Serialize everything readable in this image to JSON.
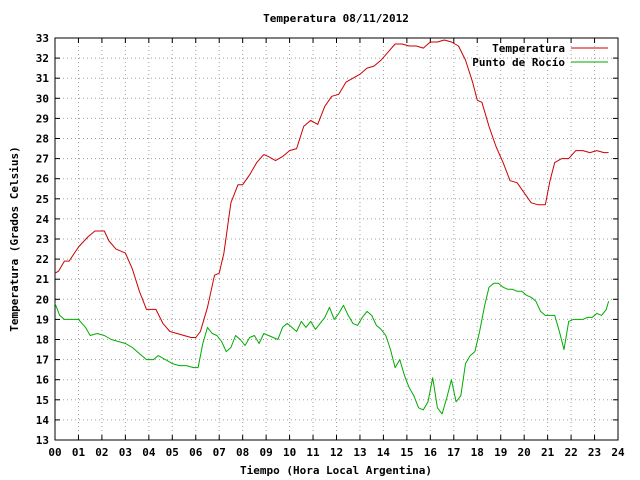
{
  "chart_data": {
    "type": "line",
    "title": "Temperatura 08/11/2012",
    "xlabel": "Tiempo (Hora Local Argentina)",
    "ylabel": "Temperatura (Grados Celsius)",
    "xlim": [
      0,
      24
    ],
    "ylim": [
      13,
      33
    ],
    "x_ticks": [
      "00",
      "01",
      "02",
      "03",
      "04",
      "05",
      "06",
      "07",
      "08",
      "09",
      "10",
      "11",
      "12",
      "13",
      "14",
      "15",
      "16",
      "17",
      "18",
      "19",
      "20",
      "21",
      "22",
      "23",
      "24"
    ],
    "y_ticks": [
      13,
      14,
      15,
      16,
      17,
      18,
      19,
      20,
      21,
      22,
      23,
      24,
      25,
      26,
      27,
      28,
      29,
      30,
      31,
      32,
      33
    ],
    "grid": true,
    "legend_position": "top-right",
    "series": [
      {
        "name": "Temperatura",
        "color": "#cc0000",
        "x": [
          0,
          0.15,
          0.4,
          0.6,
          1.0,
          1.4,
          1.7,
          2.1,
          2.3,
          2.6,
          3.0,
          3.3,
          3.6,
          3.9,
          4.3,
          4.6,
          4.9,
          5.2,
          5.5,
          5.8,
          6.0,
          6.2,
          6.5,
          6.8,
          7.0,
          7.2,
          7.5,
          7.8,
          8.0,
          8.3,
          8.6,
          8.9,
          9.1,
          9.4,
          9.7,
          10.0,
          10.3,
          10.6,
          10.9,
          11.2,
          11.5,
          11.8,
          12.1,
          12.4,
          12.7,
          13.0,
          13.3,
          13.6,
          13.9,
          14.2,
          14.5,
          14.8,
          15.1,
          15.4,
          15.7,
          16.0,
          16.3,
          16.6,
          16.9,
          17.2,
          17.5,
          17.8,
          18.0,
          18.2,
          18.5,
          18.8,
          19.1,
          19.4,
          19.7,
          20.0,
          20.3,
          20.6,
          20.9,
          21.1,
          21.3,
          21.6,
          21.9,
          22.2,
          22.5,
          22.8,
          23.1,
          23.4,
          23.6
        ],
        "y": [
          21.3,
          21.4,
          21.9,
          21.9,
          22.6,
          23.1,
          23.4,
          23.4,
          22.9,
          22.5,
          22.3,
          21.5,
          20.4,
          19.5,
          19.5,
          18.8,
          18.4,
          18.3,
          18.2,
          18.1,
          18.1,
          18.4,
          19.6,
          21.2,
          21.3,
          22.3,
          24.8,
          25.7,
          25.7,
          26.2,
          26.8,
          27.2,
          27.1,
          26.9,
          27.1,
          27.4,
          27.5,
          28.6,
          28.9,
          28.7,
          29.6,
          30.1,
          30.2,
          30.8,
          31.0,
          31.2,
          31.5,
          31.6,
          31.9,
          32.3,
          32.7,
          32.7,
          32.6,
          32.6,
          32.5,
          32.8,
          32.8,
          32.9,
          32.8,
          32.6,
          31.9,
          30.8,
          29.9,
          29.8,
          28.6,
          27.6,
          26.8,
          25.9,
          25.8,
          25.3,
          24.8,
          24.7,
          24.7,
          25.9,
          26.8,
          27.0,
          27.0,
          27.4,
          27.4,
          27.3,
          27.4,
          27.3,
          27.3
        ]
      },
      {
        "name": "Punto de Rocío",
        "color": "#00aa00",
        "x": [
          0,
          0.2,
          0.4,
          0.6,
          1.0,
          1.3,
          1.5,
          1.8,
          2.1,
          2.4,
          2.7,
          3.0,
          3.3,
          3.6,
          3.9,
          4.2,
          4.4,
          4.7,
          5.0,
          5.3,
          5.6,
          5.9,
          6.1,
          6.3,
          6.5,
          6.7,
          6.9,
          7.1,
          7.3,
          7.5,
          7.7,
          7.9,
          8.1,
          8.3,
          8.5,
          8.7,
          8.9,
          9.1,
          9.3,
          9.5,
          9.7,
          9.9,
          10.1,
          10.3,
          10.5,
          10.7,
          10.9,
          11.1,
          11.3,
          11.5,
          11.7,
          11.9,
          12.1,
          12.3,
          12.5,
          12.7,
          12.9,
          13.1,
          13.3,
          13.5,
          13.7,
          13.9,
          14.1,
          14.3,
          14.5,
          14.7,
          14.9,
          15.1,
          15.3,
          15.5,
          15.7,
          15.9,
          16.1,
          16.3,
          16.5,
          16.7,
          16.9,
          17.1,
          17.3,
          17.5,
          17.7,
          17.9,
          18.1,
          18.3,
          18.5,
          18.7,
          18.9,
          19.1,
          19.3,
          19.5,
          19.7,
          19.9,
          20.1,
          20.3,
          20.5,
          20.7,
          20.9,
          21.1,
          21.3,
          21.5,
          21.7,
          21.9,
          22.1,
          22.3,
          22.5,
          22.7,
          22.9,
          23.1,
          23.3,
          23.5,
          23.6
        ],
        "y": [
          19.8,
          19.2,
          19.0,
          19.0,
          19.0,
          18.6,
          18.2,
          18.3,
          18.2,
          18.0,
          17.9,
          17.8,
          17.6,
          17.3,
          17.0,
          17.0,
          17.2,
          17.0,
          16.8,
          16.7,
          16.7,
          16.6,
          16.6,
          17.8,
          18.6,
          18.3,
          18.2,
          17.9,
          17.4,
          17.6,
          18.2,
          18.0,
          17.7,
          18.1,
          18.2,
          17.8,
          18.3,
          18.2,
          18.1,
          18.0,
          18.6,
          18.8,
          18.6,
          18.4,
          18.9,
          18.6,
          18.9,
          18.5,
          18.8,
          19.1,
          19.6,
          19.0,
          19.3,
          19.7,
          19.2,
          18.8,
          18.7,
          19.1,
          19.4,
          19.2,
          18.7,
          18.5,
          18.2,
          17.5,
          16.6,
          17.0,
          16.2,
          15.6,
          15.2,
          14.6,
          14.5,
          14.9,
          16.1,
          14.6,
          14.3,
          15.1,
          16.0,
          14.9,
          15.2,
          16.8,
          17.2,
          17.4,
          18.4,
          19.6,
          20.6,
          20.8,
          20.8,
          20.6,
          20.5,
          20.5,
          20.4,
          20.4,
          20.2,
          20.1,
          19.9,
          19.4,
          19.2,
          19.2,
          19.2,
          18.4,
          17.5,
          18.9,
          19.0,
          19.0,
          19.0,
          19.1,
          19.1,
          19.3,
          19.2,
          19.5,
          19.9
        ]
      }
    ]
  }
}
